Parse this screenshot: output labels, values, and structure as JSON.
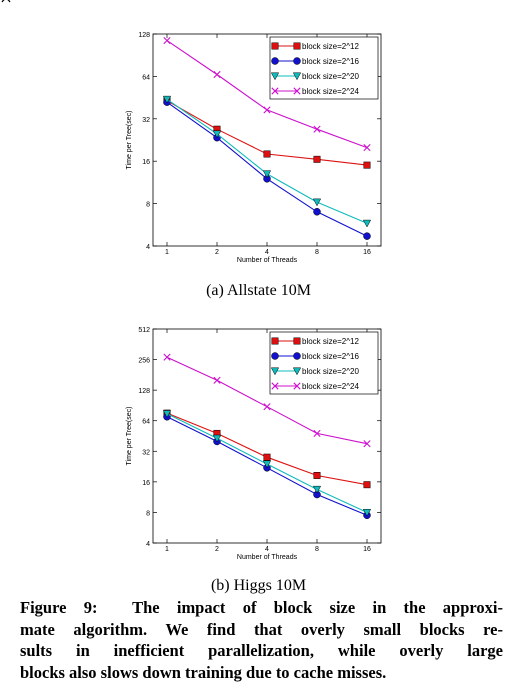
{
  "figure_number": "Figure 9:",
  "caption_lines": [
    "The impact of block size in the approxi-",
    "mate algorithm. We find that overly small blocks re-",
    "sults in inefficient parallelization, while overly large",
    "blocks also slows down training due to cache misses."
  ],
  "series_colors": {
    "block size=2^12": "#dd1111",
    "block size=2^16": "#1111cc",
    "block size=2^20": "#11bbbb",
    "block size=2^24": "#cc11cc"
  },
  "series_markers": {
    "block size=2^12": "square",
    "block size=2^16": "circle",
    "block size=2^20": "triangle-down",
    "block size=2^24": "x"
  },
  "chart_data": [
    {
      "type": "line",
      "subcaption": "(a) Allstate 10M",
      "xlabel": "Number of Threads",
      "ylabel": "Time per Tree(sec)",
      "x": [
        1,
        2,
        4,
        8,
        16
      ],
      "x_ticks": [
        "1",
        "2",
        "4",
        "8",
        "16"
      ],
      "y_ticks": [
        "4",
        "8",
        "16",
        "32",
        "64",
        "128"
      ],
      "y_tick_values": [
        4,
        8,
        16,
        32,
        64,
        128
      ],
      "xscale": "log2",
      "yscale": "log2",
      "xlim": [
        1,
        16
      ],
      "ylim": [
        4,
        128
      ],
      "legend_position": "top-right",
      "series": [
        {
          "name": "block size=2^12",
          "values": [
            43,
            27,
            18,
            16.5,
            15
          ]
        },
        {
          "name": "block size=2^16",
          "values": [
            42,
            23.5,
            12,
            7,
            4.7
          ]
        },
        {
          "name": "block size=2^20",
          "values": [
            44,
            25,
            13,
            8.2,
            5.8
          ]
        },
        {
          "name": "block size=2^24",
          "values": [
            115,
            66,
            37,
            27,
            20
          ]
        }
      ]
    },
    {
      "type": "line",
      "subcaption": "(b) Higgs 10M",
      "xlabel": "Number of Threads",
      "ylabel": "Time per Tree(sec)",
      "x": [
        1,
        2,
        4,
        8,
        16
      ],
      "x_ticks": [
        "1",
        "2",
        "4",
        "8",
        "16"
      ],
      "y_ticks": [
        "4",
        "8",
        "16",
        "32",
        "64",
        "128",
        "256",
        "512"
      ],
      "y_tick_values": [
        4,
        8,
        16,
        32,
        64,
        128,
        256,
        512
      ],
      "xscale": "log2",
      "yscale": "log2",
      "xlim": [
        1,
        16
      ],
      "ylim": [
        4,
        512
      ],
      "legend_position": "top-right",
      "series": [
        {
          "name": "block size=2^12",
          "values": [
            76,
            48,
            28,
            18.5,
            15
          ]
        },
        {
          "name": "block size=2^16",
          "values": [
            70,
            40,
            22,
            12,
            7.5
          ]
        },
        {
          "name": "block size=2^20",
          "values": [
            75,
            43,
            24,
            13.5,
            8
          ]
        },
        {
          "name": "block size=2^24",
          "values": [
            270,
            160,
            88,
            48,
            38
          ]
        }
      ]
    }
  ]
}
